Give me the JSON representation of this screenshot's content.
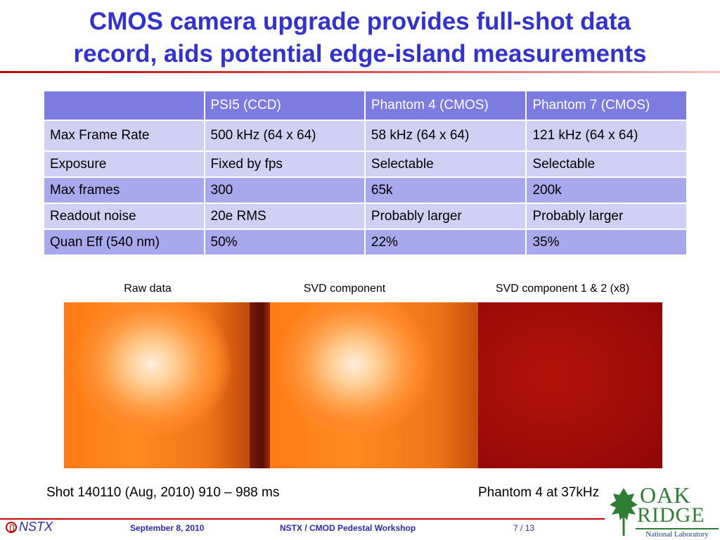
{
  "slide": {
    "title_line1": "CMOS camera upgrade provides full-shot data",
    "title_line2": "record, aids potential edge-island measurements"
  },
  "table": {
    "headers": [
      "",
      "PSI5 (CCD)",
      "Phantom 4 (CMOS)",
      "Phantom 7 (CMOS)"
    ],
    "rows": [
      [
        "Max Frame Rate",
        "500 kHz (64 x 64)",
        "58 kHz (64 x 64)",
        "121 kHz (64 x 64)"
      ],
      [
        "Exposure",
        "Fixed by fps",
        "Selectable",
        "Selectable"
      ],
      [
        "Max frames",
        "300",
        "65k",
        "200k"
      ],
      [
        "Readout noise",
        "20e RMS",
        "Probably larger",
        "Probably larger"
      ],
      [
        "Quan Eff (540 nm)",
        "50%",
        "22%",
        "35%"
      ]
    ]
  },
  "images": {
    "label_raw": "Raw data",
    "label_svd": "SVD component",
    "label_svd12": "SVD component 1 & 2 (x8)"
  },
  "captions": {
    "shot": "Shot  140110 (Aug, 2010) 910 – 988 ms",
    "phantom": "Phantom 4 at 37kHz"
  },
  "footer": {
    "nstx_logo": "NSTX",
    "date": "September 8, 2010",
    "workshop": "NSTX / CMOD Pedestal Workshop",
    "page": "7 / 13"
  },
  "logo": {
    "oak": "OAK",
    "ridge": "RIDGE",
    "lab": "National Laboratory"
  },
  "colors": {
    "title": "#3333cc",
    "header_row": "#7b7be0",
    "row_light": "#d0d0f4",
    "row_dark": "#a8a8ec",
    "accent_rule": "#c00000"
  }
}
